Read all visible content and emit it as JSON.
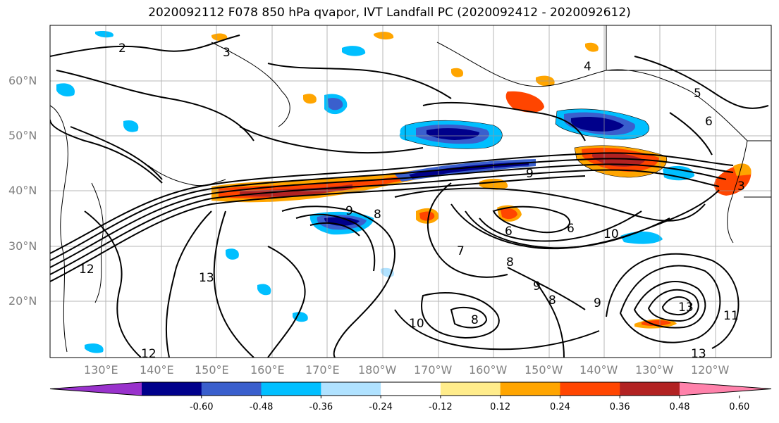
{
  "title": "2020092112 F078 850 hPa qvapor, IVT Landfall PC (2020092412 - 2020092612)",
  "lat_labels": [
    "60°N",
    "50°N",
    "40°N",
    "30°N",
    "20°N"
  ],
  "lon_labels": [
    "130°E",
    "140°E",
    "150°E",
    "160°E",
    "170°E",
    "180°W",
    "170°W",
    "160°W",
    "150°W",
    "140°W",
    "130°W",
    "120°W"
  ],
  "contour_labels": [
    "3",
    "2",
    "4",
    "5",
    "6",
    "9",
    "8",
    "6",
    "6",
    "10",
    "7",
    "8",
    "12",
    "13",
    "12",
    "10",
    "8",
    "9",
    "9",
    "13",
    "13",
    "11",
    "3",
    "8",
    "9"
  ],
  "colorbar": {
    "ticks": [
      "-0.60",
      "-0.48",
      "-0.36",
      "-0.24",
      "-0.12",
      "0.12",
      "0.24",
      "0.36",
      "0.48",
      "0.60"
    ],
    "colors": [
      "#9932cc",
      "#00008b",
      "#3a5fcd",
      "#00bfff",
      "#b0e2ff",
      "#ffffff",
      "#ffec8b",
      "#ffa500",
      "#ff4500",
      "#b22222",
      "#ff82ab"
    ]
  }
}
